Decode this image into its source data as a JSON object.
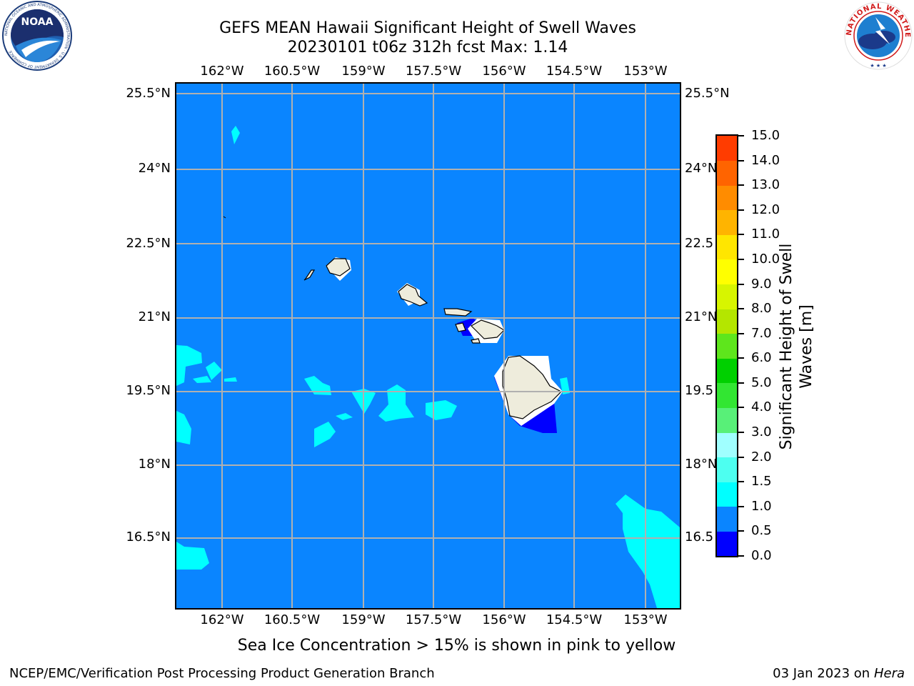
{
  "title": {
    "line1": "GEFS MEAN Hawaii Significant Height of Swell Waves",
    "line2": "20230101 t06z 312h fcst   Max: 1.14"
  },
  "axes": {
    "lon_labels": [
      "162°W",
      "160.5°W",
      "159°W",
      "157.5°W",
      "156°W",
      "154.5°W",
      "153°W"
    ],
    "lat_labels": [
      "25.5°N",
      "24°N",
      "22.5°N",
      "21°N",
      "19.5°N",
      "18°N",
      "16.5°N"
    ],
    "right_lat_labels": [
      "25.5°N",
      "24°N",
      "22.5",
      "21°N",
      "19.5",
      "18°N",
      "16.5"
    ]
  },
  "colorbar": {
    "title": "Significant Height of Swell Waves [m]",
    "labels": [
      "0.0",
      "0.5",
      "1.0",
      "1.5",
      "2.0",
      "3.0",
      "4.0",
      "5.0",
      "6.0",
      "7.0",
      "8.0",
      "9.0",
      "10.0",
      "11.0",
      "12.0",
      "13.0",
      "14.0",
      "15.0"
    ],
    "colors": [
      "#0000ff",
      "#0a85ff",
      "#00ffff",
      "#4dfff0",
      "#a0ffff",
      "#58f078",
      "#32e632",
      "#00d000",
      "#5ee61c",
      "#b4e600",
      "#d7f500",
      "#ffff00",
      "#ffe600",
      "#ffb400",
      "#ff8c00",
      "#ff6400",
      "#ff3c00",
      "#ff0000"
    ]
  },
  "note": "Sea Ice Concentration > 15% is shown in pink to yellow",
  "footer": {
    "left": "NCEP/EMC/Verification Post Processing Product Generation Branch",
    "right_date": "03 Jan 2023 on ",
    "right_host": "Hera"
  },
  "logos": {
    "left": "NOAA",
    "left_ring": "NATIONAL OCEANIC AND ATMOSPHERIC ADMINISTRATION · U.S. DEPARTMENT OF COMMERCE",
    "right_ring": "NATIONAL WEATHER SERVICE"
  },
  "map_colors": {
    "ocean": "#0a85ff",
    "swell_light": "#00ffff",
    "swell_low": "#0000ff",
    "land": "#eeecdc",
    "grid": "#b0b0b0"
  }
}
